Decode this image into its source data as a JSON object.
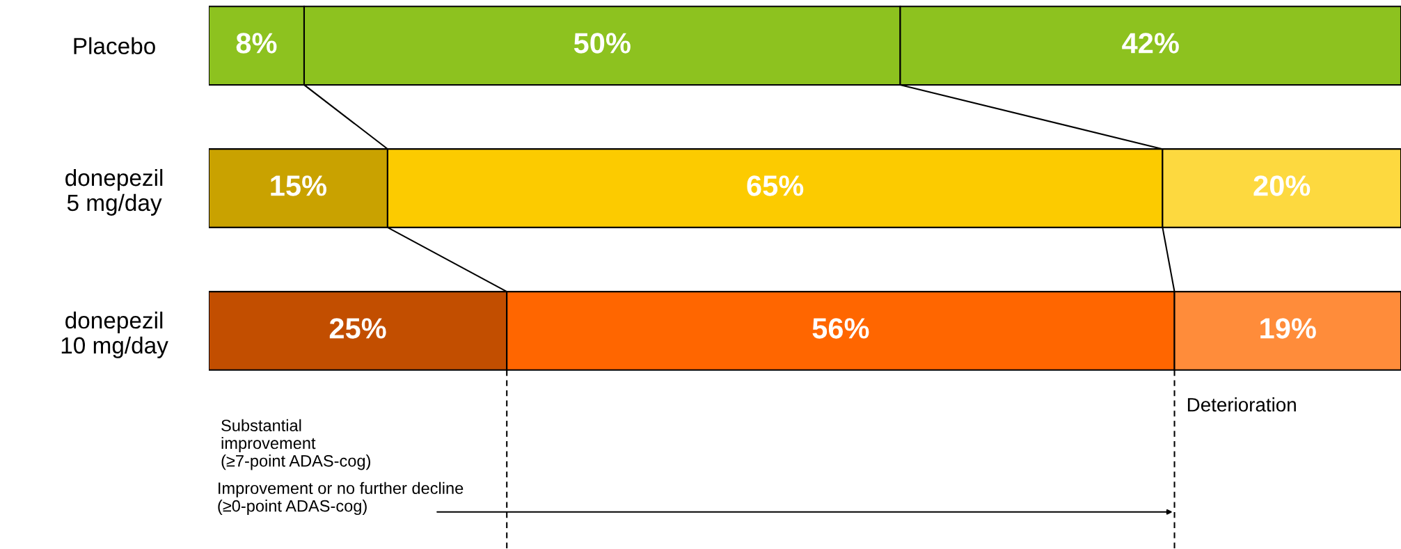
{
  "chart_data": {
    "type": "bar",
    "orientation": "horizontal",
    "stacked": true,
    "tick_labels": "y",
    "categories": [
      "Placebo",
      "donepezil\n5 mg/day",
      "donepezil\n10 mg/day"
    ],
    "series": [
      {
        "colors": [
          "#8dc21f",
          "#c9a200",
          "#c24e00"
        ],
        "values": [
          8,
          15,
          25
        ],
        "value_labels": [
          "8%",
          "15%",
          "25%"
        ]
      },
      {
        "colors": [
          "#8dc21f",
          "#fccb00",
          "#ff6600"
        ],
        "values": [
          50,
          65,
          56
        ],
        "value_labels": [
          "50%",
          "65%",
          "56%"
        ]
      },
      {
        "colors": [
          "#8dc21f",
          "#fdd93f",
          "#ff8c3a"
        ],
        "values": [
          42,
          20,
          19
        ],
        "value_labels": [
          "42%",
          "20%",
          "19%"
        ]
      }
    ],
    "annotations": [
      "Substantial\nimprovement\n(≥7-point ADAS-cog)",
      "Improvement or no further decline\n(≥0-point ADAS-cog)",
      "Deterioration"
    ]
  }
}
